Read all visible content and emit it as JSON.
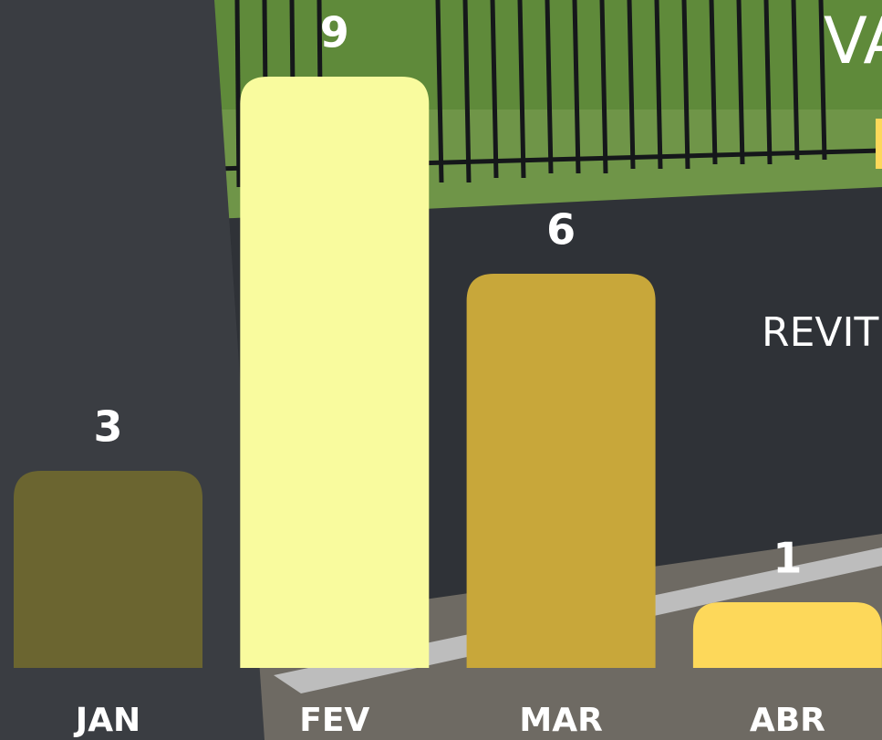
{
  "chart_data": {
    "type": "bar",
    "categories": [
      "JAN",
      "FEV",
      "MAR",
      "ABR"
    ],
    "values": [
      3,
      9,
      6,
      1
    ],
    "colors": [
      "#6b6530",
      "#f9fb9e",
      "#c8a73a",
      "#fdd85a"
    ],
    "ylim": [
      0,
      10
    ],
    "annotations": [
      "VA",
      "REVIT"
    ]
  }
}
